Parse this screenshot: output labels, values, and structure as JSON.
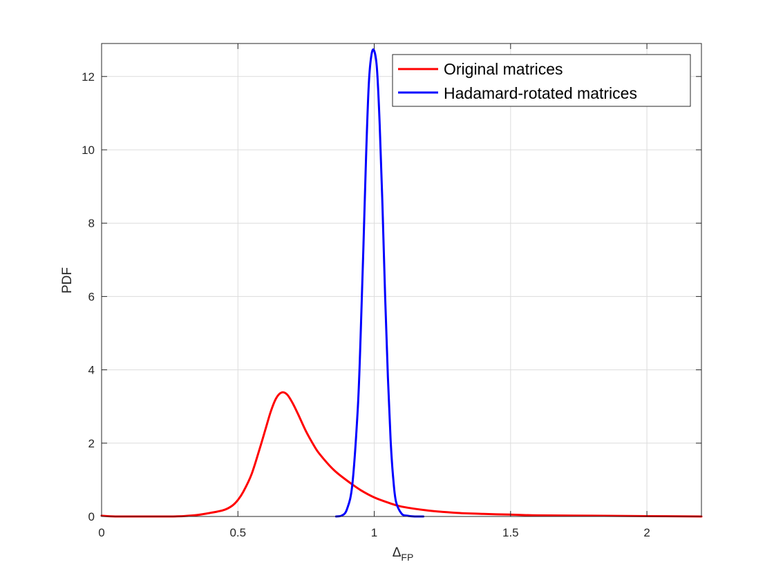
{
  "chart_data": {
    "type": "line",
    "xlabel": {
      "main": "Δ",
      "sub": "FP"
    },
    "ylabel": "PDF",
    "xlim": [
      0,
      2.2
    ],
    "ylim": [
      0,
      12.9
    ],
    "xticks": [
      0,
      0.5,
      1,
      1.5,
      2
    ],
    "xtick_labels": [
      "0",
      "0.5",
      "1",
      "1.5",
      "2"
    ],
    "yticks": [
      0,
      2,
      4,
      6,
      8,
      10,
      12
    ],
    "ytick_labels": [
      "0",
      "2",
      "4",
      "6",
      "8",
      "10",
      "12"
    ],
    "grid": true,
    "legend_position": "top-right",
    "series": [
      {
        "name": "Original matrices",
        "color": "#ff0000",
        "x": [
          0,
          0.05,
          0.1,
          0.15,
          0.2,
          0.25,
          0.3,
          0.35,
          0.4,
          0.45,
          0.48,
          0.5,
          0.52,
          0.55,
          0.58,
          0.6,
          0.62,
          0.64,
          0.66,
          0.68,
          0.7,
          0.72,
          0.75,
          0.78,
          0.8,
          0.85,
          0.9,
          0.95,
          1.0,
          1.05,
          1.1,
          1.2,
          1.3,
          1.4,
          1.5,
          1.6,
          1.8,
          2.0,
          2.2
        ],
        "y": [
          0.02,
          0.0,
          0.0,
          0.0,
          0.0,
          0.0,
          0.01,
          0.04,
          0.1,
          0.18,
          0.3,
          0.45,
          0.68,
          1.15,
          1.85,
          2.35,
          2.85,
          3.22,
          3.38,
          3.33,
          3.1,
          2.8,
          2.32,
          1.92,
          1.7,
          1.28,
          0.98,
          0.72,
          0.52,
          0.38,
          0.27,
          0.16,
          0.1,
          0.07,
          0.05,
          0.03,
          0.02,
          0.01,
          0.0
        ]
      },
      {
        "name": "Hadamard-rotated matrices",
        "color": "#0000ff",
        "x": [
          0.86,
          0.88,
          0.9,
          0.92,
          0.94,
          0.95,
          0.96,
          0.97,
          0.98,
          0.99,
          1.0,
          1.01,
          1.02,
          1.03,
          1.04,
          1.05,
          1.06,
          1.07,
          1.08,
          1.1,
          1.12,
          1.15,
          1.18
        ],
        "y": [
          0.0,
          0.02,
          0.2,
          0.9,
          3.0,
          4.9,
          7.3,
          9.8,
          11.8,
          12.6,
          12.7,
          12.2,
          10.7,
          8.5,
          6.0,
          3.8,
          2.1,
          1.0,
          0.4,
          0.08,
          0.02,
          0.0,
          0.0
        ]
      }
    ]
  }
}
